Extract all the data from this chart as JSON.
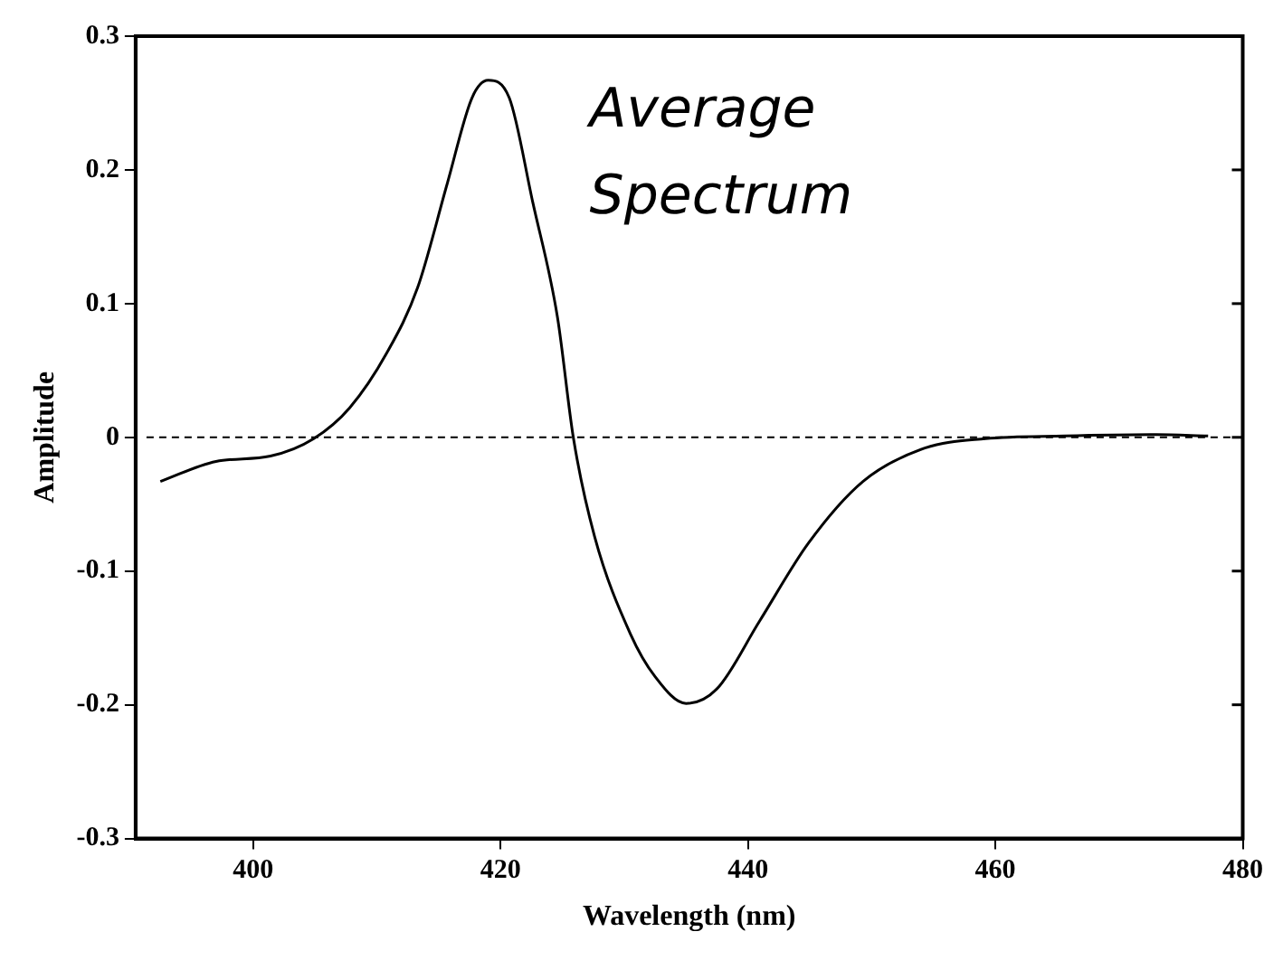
{
  "chart_data": {
    "type": "line",
    "xlabel": "Wavelength (nm)",
    "ylabel": "Amplitude",
    "annotations": [
      "Average Spectrum"
    ],
    "x": [
      392.5,
      397,
      401.4,
      404.9,
      407.8,
      410.8,
      413.3,
      415.7,
      417.7,
      419,
      420.7,
      422.6,
      424.6,
      425.9,
      427.6,
      430.5,
      432.5,
      435,
      437.5,
      440.9,
      444.9,
      449.3,
      454.3,
      459.2,
      465.6,
      473,
      477.2
    ],
    "series": [
      {
        "color": "#000000",
        "values": [
          -0.033,
          -0.018,
          -0.014,
          -0.001,
          0.022,
          0.063,
          0.112,
          0.19,
          0.254,
          0.267,
          0.254,
          0.176,
          0.09,
          -0.001,
          -0.074,
          -0.147,
          -0.179,
          -0.199,
          -0.188,
          -0.138,
          -0.079,
          -0.033,
          -0.008,
          -0.001,
          0.001,
          0.002,
          0.001
        ]
      }
    ],
    "xlim": [
      390.5,
      480
    ],
    "xticks": [
      400,
      420,
      440,
      460,
      480
    ],
    "ylim": [
      -0.3,
      0.3
    ],
    "yticks": [
      -0.3,
      -0.2,
      -0.1,
      0,
      0.1,
      0.2,
      0.3
    ],
    "ref_lines": [
      {
        "axis": "y",
        "value": 0,
        "line_style": "dashed",
        "color": "#000000"
      }
    ],
    "grid": false,
    "legend": false,
    "marker": "none",
    "line_style": "solid"
  }
}
